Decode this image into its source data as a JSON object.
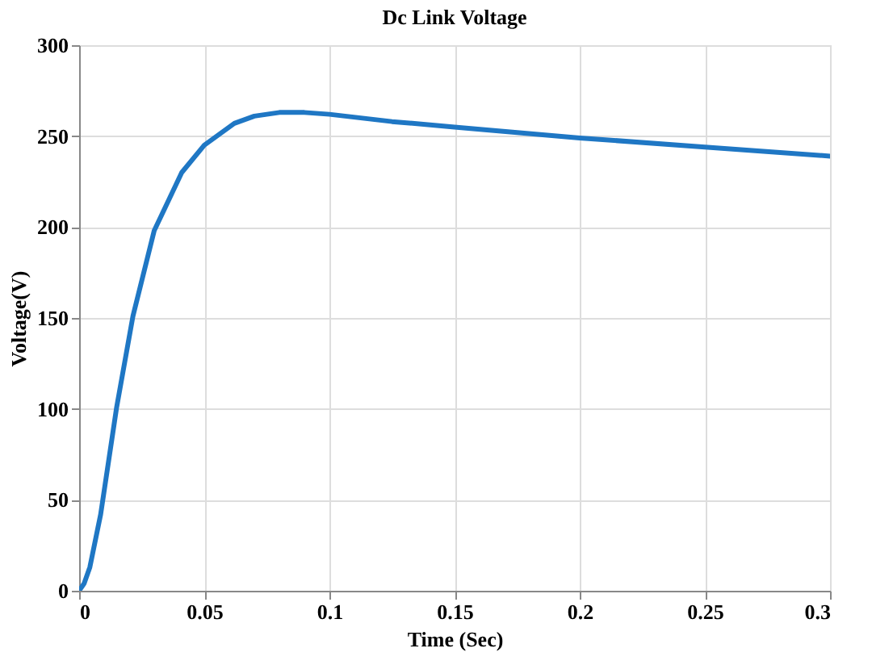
{
  "chart_data": {
    "type": "line",
    "title": "Dc Link Voltage",
    "xlabel": "Time (Sec)",
    "ylabel": "Voltage(V)",
    "x": [
      0,
      0.002,
      0.0043,
      0.0086,
      0.015,
      0.0215,
      0.03,
      0.041,
      0.05,
      0.062,
      0.07,
      0.08,
      0.09,
      0.1,
      0.125,
      0.15,
      0.175,
      0.2,
      0.25,
      0.3
    ],
    "series": [
      {
        "color": "#1f77c4",
        "values": [
          0,
          4,
          13,
          42,
          101,
          151,
          198,
          230,
          245,
          257,
          261,
          263,
          263,
          262,
          258,
          255,
          252,
          249,
          244,
          239
        ]
      }
    ],
    "xlim": [
      0,
      0.3
    ],
    "ylim": [
      0,
      300
    ],
    "xticks": [
      0,
      0.05,
      0.1,
      0.15,
      0.2,
      0.25,
      0.3
    ],
    "yticks": [
      0,
      50,
      100,
      150,
      200,
      250,
      300
    ],
    "grid": true,
    "marker": "none",
    "line_style": "solid"
  }
}
